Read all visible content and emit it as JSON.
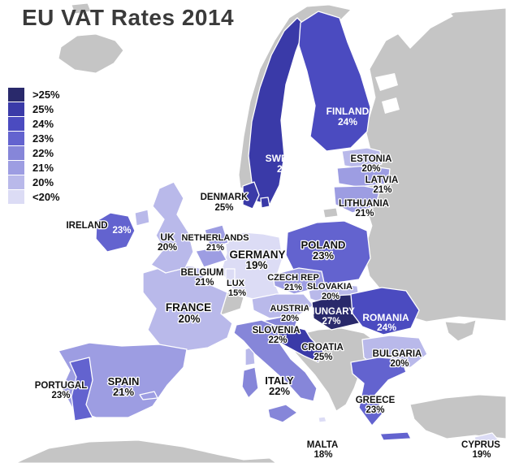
{
  "title": "EU VAT Rates 2014",
  "legend": {
    "items": [
      {
        "label": ">25%",
        "color": "#29296b"
      },
      {
        "label": "25%",
        "color": "#3a3aa8"
      },
      {
        "label": "24%",
        "color": "#4b4bc0"
      },
      {
        "label": "23%",
        "color": "#6363cf"
      },
      {
        "label": "22%",
        "color": "#8686d9"
      },
      {
        "label": "21%",
        "color": "#9d9de2"
      },
      {
        "label": "20%",
        "color": "#b9b9ea"
      },
      {
        "label": "<20%",
        "color": "#dcdcf5"
      }
    ]
  },
  "map": {
    "sea_color": "#ffffff",
    "non_eu_color": "#c5c5c5",
    "border_color": "#ffffff",
    "countries": [
      {
        "id": "sweden",
        "name": "SWEDEN",
        "rate": "25%",
        "bucket": "25%",
        "name_color": "#ffffff",
        "rate_color": "#ffffff"
      },
      {
        "id": "finland",
        "name": "FINLAND",
        "rate": "24%",
        "bucket": "24%",
        "name_color": "#ffffff",
        "rate_color": "#ffffff"
      },
      {
        "id": "denmark",
        "name": "DENMARK",
        "rate": "25%",
        "bucket": "25%",
        "name_color": "#111111",
        "rate_color": "#111111"
      },
      {
        "id": "estonia",
        "name": "ESTONIA",
        "rate": "20%",
        "bucket": "20%",
        "name_color": "#111111",
        "rate_color": "#111111"
      },
      {
        "id": "latvia",
        "name": "LATVIA",
        "rate": "21%",
        "bucket": "21%",
        "name_color": "#111111",
        "rate_color": "#111111"
      },
      {
        "id": "lithuania",
        "name": "LITHUANIA",
        "rate": "21%",
        "bucket": "21%",
        "name_color": "#111111",
        "rate_color": "#111111"
      },
      {
        "id": "poland",
        "name": "POLAND",
        "rate": "23%",
        "bucket": "23%",
        "name_color": "#111111",
        "rate_color": "#111111"
      },
      {
        "id": "germany",
        "name": "GERMANY",
        "rate": "19%",
        "bucket": "<20%",
        "name_color": "#111111",
        "rate_color": "#111111"
      },
      {
        "id": "france",
        "name": "FRANCE",
        "rate": "20%",
        "bucket": "20%",
        "name_color": "#111111",
        "rate_color": "#111111"
      },
      {
        "id": "netherlands",
        "name": "NETHERLANDS",
        "rate": "21%",
        "bucket": "21%",
        "name_color": "#111111",
        "rate_color": "#111111"
      },
      {
        "id": "belgium",
        "name": "BELGIUM",
        "rate": "21%",
        "bucket": "21%",
        "name_color": "#111111",
        "rate_color": "#111111"
      },
      {
        "id": "luxembourg",
        "name": "LUX",
        "rate": "15%",
        "bucket": "<20%",
        "name_color": "#111111",
        "rate_color": "#111111"
      },
      {
        "id": "czech",
        "name": "CZECH REP",
        "rate": "21%",
        "bucket": "21%",
        "name_color": "#111111",
        "rate_color": "#111111"
      },
      {
        "id": "austria",
        "name": "AUSTRIA",
        "rate": "20%",
        "bucket": "20%",
        "name_color": "#111111",
        "rate_color": "#111111"
      },
      {
        "id": "slovakia",
        "name": "SLOVAKIA",
        "rate": "20%",
        "bucket": "20%",
        "name_color": "#111111",
        "rate_color": "#111111"
      },
      {
        "id": "hungary",
        "name": "HUNGARY",
        "rate": "27%",
        "bucket": ">25%",
        "name_color": "#ffffff",
        "rate_color": "#ffffff"
      },
      {
        "id": "slovenia",
        "name": "SLOVENIA",
        "rate": "22%",
        "bucket": "22%",
        "name_color": "#111111",
        "rate_color": "#111111"
      },
      {
        "id": "croatia",
        "name": "CROATIA",
        "rate": "25%",
        "bucket": "25%",
        "name_color": "#111111",
        "rate_color": "#111111"
      },
      {
        "id": "romania",
        "name": "ROMANIA",
        "rate": "24%",
        "bucket": "24%",
        "name_color": "#ffffff",
        "rate_color": "#ffffff"
      },
      {
        "id": "bulgaria",
        "name": "BULGARIA",
        "rate": "20%",
        "bucket": "20%",
        "name_color": "#111111",
        "rate_color": "#111111"
      },
      {
        "id": "greece",
        "name": "GREECE",
        "rate": "23%",
        "bucket": "23%",
        "name_color": "#111111",
        "rate_color": "#111111"
      },
      {
        "id": "italy",
        "name": "ITALY",
        "rate": "22%",
        "bucket": "22%",
        "name_color": "#111111",
        "rate_color": "#111111"
      },
      {
        "id": "spain",
        "name": "SPAIN",
        "rate": "21%",
        "bucket": "21%",
        "name_color": "#111111",
        "rate_color": "#111111"
      },
      {
        "id": "portugal",
        "name": "PORTUGAL",
        "rate": "23%",
        "bucket": "23%",
        "name_color": "#111111",
        "rate_color": "#111111"
      },
      {
        "id": "ireland",
        "name": "IRELAND",
        "rate": "23%",
        "bucket": "23%",
        "name_color": "#111111",
        "rate_color": "#ffffff"
      },
      {
        "id": "uk",
        "name": "UK",
        "rate": "20%",
        "bucket": "20%",
        "name_color": "#111111",
        "rate_color": "#111111"
      },
      {
        "id": "malta",
        "name": "MALTA",
        "rate": "18%",
        "bucket": "<20%",
        "name_color": "#111111",
        "rate_color": "#111111"
      },
      {
        "id": "cyprus",
        "name": "CYPRUS",
        "rate": "19%",
        "bucket": "<20%",
        "name_color": "#111111",
        "rate_color": "#111111"
      }
    ]
  }
}
